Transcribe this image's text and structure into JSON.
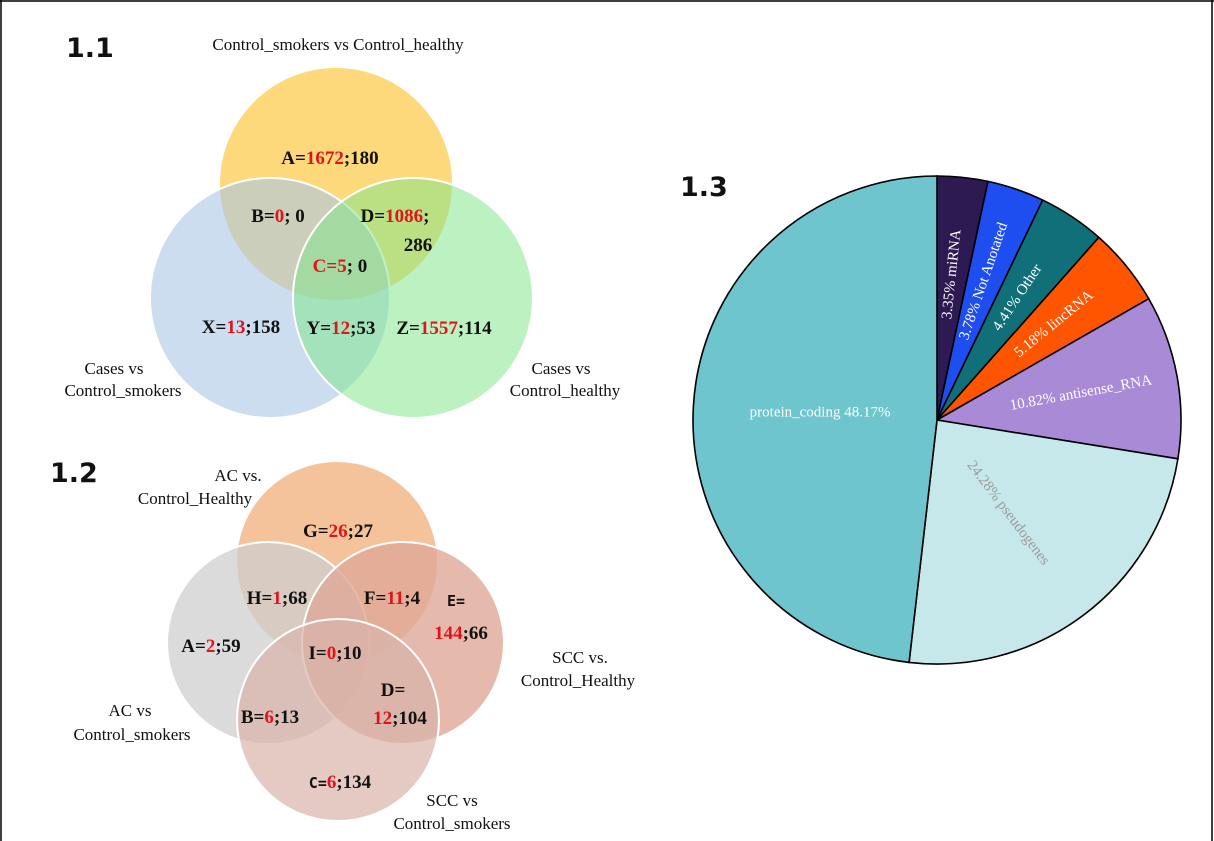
{
  "panels": {
    "p11": "1.1",
    "p12": "1.2",
    "p13": "1.3"
  },
  "venn1": {
    "title_top": "Control_smokers vs Control_healthy",
    "label_left": [
      "Cases vs",
      "Control_smokers"
    ],
    "label_right": [
      "Cases vs",
      "Control_healthy"
    ],
    "colors": {
      "top": "#fdd46a",
      "left": "#a9c6e4",
      "right": "#7ee68a"
    },
    "regions": {
      "A": {
        "name": "A=",
        "red": "1672",
        "rest": ";180"
      },
      "B": {
        "name": "B=",
        "red": "0",
        "rest": "; 0"
      },
      "D": {
        "name": "D=",
        "red": "1086",
        "rest": ";",
        "line2": "286"
      },
      "C": {
        "name": "C=",
        "red": "5",
        "rest": "; 0"
      },
      "X": {
        "name": "X=",
        "red": "13",
        "rest": ";158"
      },
      "Y": {
        "name": "Y=",
        "red": "12",
        "rest": ";53"
      },
      "Z": {
        "name": "Z=",
        "red": "1557",
        "rest": ";114"
      }
    }
  },
  "venn2": {
    "label_top": [
      "AC vs.",
      "Control_Healthy"
    ],
    "label_right": [
      "SCC vs.",
      "Control_Healthy"
    ],
    "label_left": [
      "AC vs",
      "Control_smokers"
    ],
    "label_bottom": [
      "SCC vs",
      "Control_smokers"
    ],
    "colors": {
      "top": "#f2b88a",
      "left": "#cfcfcf",
      "right": "#dea797",
      "bottom": "#d9b4aa"
    },
    "regions": {
      "G": {
        "name": "G=",
        "red": "26",
        "rest": ";27"
      },
      "H": {
        "name": "H=",
        "red": "1",
        "rest": ";68"
      },
      "F": {
        "name": "F=",
        "red": "11",
        "rest": ";4"
      },
      "E": {
        "name": "E=",
        "red": "144",
        "rest": ";66"
      },
      "A": {
        "name": "A=",
        "red": "2",
        "rest": ";59"
      },
      "I": {
        "name": "I=",
        "red": "0",
        "rest": ";10"
      },
      "D": {
        "name": "D=",
        "red": "12",
        "rest": ";104"
      },
      "B": {
        "name": "B=",
        "red": "6",
        "rest": ";13"
      },
      "C": {
        "name": "C=",
        "red": "6",
        "rest": ";134"
      }
    }
  },
  "chart_data": {
    "type": "pie",
    "title": "",
    "slices": [
      {
        "label": "miRNA",
        "text": "3.35%  miRNA",
        "value": 3.35,
        "color": "#2e1a52",
        "text_color": "#ffffff"
      },
      {
        "label": "Not Anotated",
        "text": "3.78%  Not Anotated",
        "value": 3.78,
        "color": "#1e4ef0",
        "text_color": "#ffffff"
      },
      {
        "label": "Other",
        "text": "4.41%  Other",
        "value": 4.41,
        "color": "#106f78",
        "text_color": "#ffffff"
      },
      {
        "label": "lincRNA",
        "text": "5.18%  lincRNA",
        "value": 5.18,
        "color": "#ff5500",
        "text_color": "#ffffff"
      },
      {
        "label": "antisense_RNA",
        "text": "10.82%  antisense_RNA",
        "value": 10.82,
        "color": "#a88ad6",
        "text_color": "#ffffff"
      },
      {
        "label": "pseudogenes",
        "text": "24.28%  pseudogenes",
        "value": 24.28,
        "color": "#c6e8ea",
        "text_color": "#9a9a9a"
      },
      {
        "label": "protein_coding",
        "text": "protein_coding 48.17%",
        "value": 48.17,
        "color": "#6ec5ce",
        "text_color": "#ffffff"
      }
    ]
  }
}
